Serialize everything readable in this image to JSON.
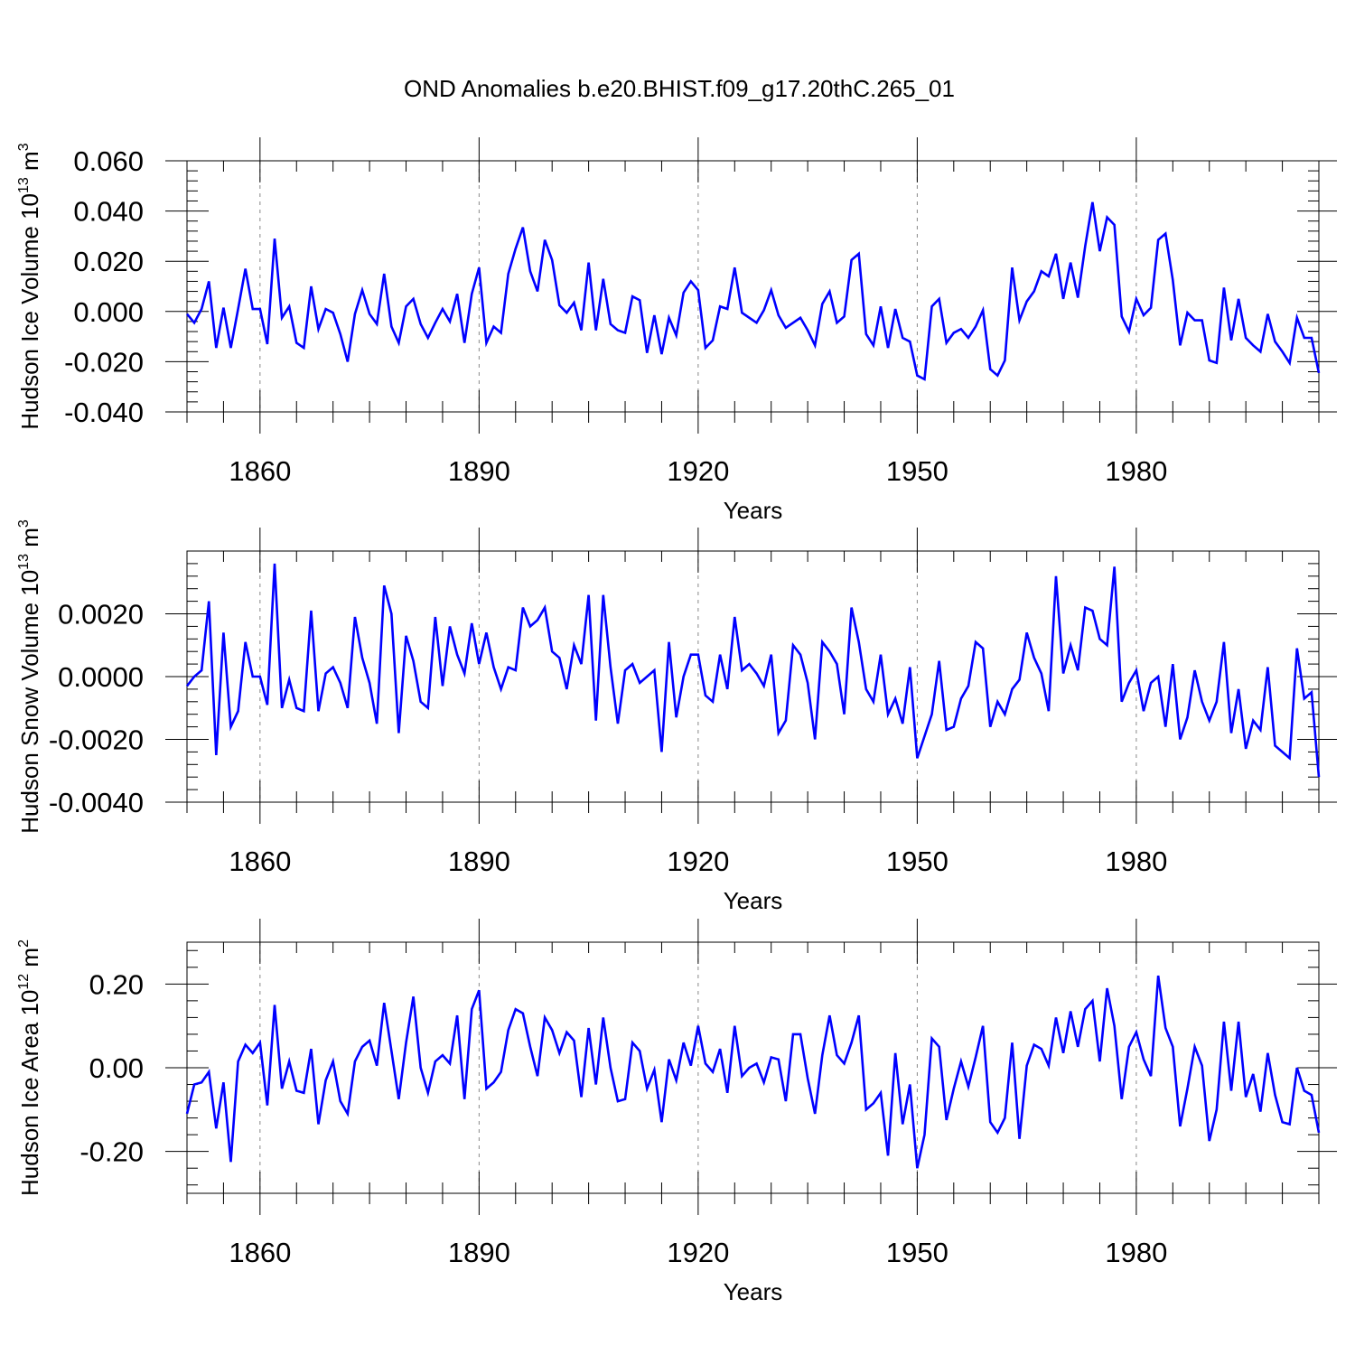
{
  "title": "OND Anomalies b.e20.BHIST.f09_g17.20thC.265_01",
  "colors": {
    "line": "#0000ff",
    "axis": "#000000",
    "grid": "#888888",
    "background": "#ffffff"
  },
  "chart_data": [
    {
      "type": "line",
      "title": "OND Anomalies b.e20.BHIST.f09_g17.20thC.265_01",
      "xlabel": "Years",
      "ylabel_text": "Hudson Ice Volume 10",
      "ylabel_exp": "13",
      "ylabel_unit": " m",
      "ylabel_unit_exp": "3",
      "xlim": [
        1850,
        2005
      ],
      "ylim": [
        -0.04,
        0.06
      ],
      "xticks": [
        1860,
        1890,
        1920,
        1950,
        1980
      ],
      "xtick_labels": [
        "1860",
        "1890",
        "1920",
        "1950",
        "1980"
      ],
      "yticks": [
        -0.04,
        -0.02,
        0.0,
        0.02,
        0.04,
        0.06
      ],
      "ytick_labels": [
        "-0.040",
        "-0.020",
        "0.000",
        "0.020",
        "0.040",
        "0.060"
      ],
      "x_start": 1850,
      "series": [
        {
          "name": "Hudson Ice Volume",
          "values": [
            -0.001,
            -0.0045,
            0.001,
            0.012,
            -0.0145,
            0.0015,
            -0.0145,
            0.001,
            0.017,
            0.001,
            0.001,
            -0.013,
            0.029,
            -0.0025,
            0.002,
            -0.0125,
            -0.0145,
            0.01,
            -0.007,
            0.001,
            -0.0005,
            -0.009,
            -0.02,
            -0.001,
            0.0085,
            -0.001,
            -0.005,
            0.015,
            -0.006,
            -0.0125,
            0.002,
            0.005,
            -0.005,
            -0.0105,
            -0.0045,
            0.001,
            -0.004,
            0.007,
            -0.0125,
            0.007,
            0.0175,
            -0.0125,
            -0.006,
            -0.0085,
            0.015,
            0.025,
            0.0335,
            0.016,
            0.008,
            0.0285,
            0.0205,
            0.0025,
            -0.0005,
            0.0035,
            -0.0075,
            0.0195,
            -0.0075,
            0.013,
            -0.005,
            -0.0075,
            -0.0085,
            0.006,
            0.0045,
            -0.0165,
            -0.0015,
            -0.017,
            -0.0025,
            -0.0095,
            0.0075,
            0.012,
            0.0085,
            -0.0145,
            -0.0115,
            0.002,
            0.001,
            0.0175,
            -0.0005,
            -0.0025,
            -0.0045,
            0.0005,
            0.0085,
            -0.0015,
            -0.0065,
            -0.0045,
            -0.0025,
            -0.0075,
            -0.0135,
            0.003,
            0.008,
            -0.0045,
            -0.002,
            0.0205,
            0.023,
            -0.009,
            -0.0135,
            0.002,
            -0.0145,
            0.001,
            -0.0105,
            -0.012,
            -0.0255,
            -0.027,
            0.002,
            0.005,
            -0.0125,
            -0.0085,
            -0.007,
            -0.0105,
            -0.006,
            0.0005,
            -0.023,
            -0.0255,
            -0.0195,
            0.0175,
            -0.0035,
            0.004,
            0.008,
            0.016,
            0.014,
            0.023,
            0.005,
            0.0195,
            0.0055,
            0.026,
            0.0435,
            0.024,
            0.0375,
            0.0345,
            -0.002,
            -0.008,
            0.005,
            -0.0015,
            0.0015,
            0.0285,
            0.031,
            0.0125,
            -0.0135,
            -0.0005,
            -0.0035,
            -0.0035,
            -0.0195,
            -0.0205,
            0.0095,
            -0.0115,
            0.005,
            -0.0105,
            -0.0135,
            -0.016,
            -0.001,
            -0.012,
            -0.016,
            -0.0205,
            -0.0025,
            -0.0105,
            -0.0105,
            -0.0245
          ]
        }
      ]
    },
    {
      "type": "line",
      "title": "",
      "xlabel": "Years",
      "ylabel_text": "Hudson Snow Volume 10",
      "ylabel_exp": "13",
      "ylabel_unit": " m",
      "ylabel_unit_exp": "3",
      "xlim": [
        1850,
        2005
      ],
      "ylim": [
        -0.004,
        0.004
      ],
      "xticks": [
        1860,
        1890,
        1920,
        1950,
        1980
      ],
      "xtick_labels": [
        "1860",
        "1890",
        "1920",
        "1950",
        "1980"
      ],
      "yticks": [
        -0.004,
        -0.002,
        0.0,
        0.002
      ],
      "ytick_labels": [
        "-0.0040",
        "-0.0020",
        "0.0000",
        "0.0020"
      ],
      "x_start": 1850,
      "series": [
        {
          "name": "Hudson Snow Volume",
          "values": [
            -0.0003,
            0.0,
            0.0002,
            0.0024,
            -0.0025,
            0.0014,
            -0.0016,
            -0.0011,
            0.0011,
            0.0,
            0.0,
            -0.0009,
            0.0036,
            -0.001,
            -0.0001,
            -0.001,
            -0.0011,
            0.0021,
            -0.0011,
            0.0001,
            0.0003,
            -0.0002,
            -0.001,
            0.0019,
            0.0006,
            -0.0002,
            -0.0015,
            0.0029,
            0.002,
            -0.0018,
            0.0013,
            0.0005,
            -0.0008,
            -0.001,
            0.0019,
            -0.0003,
            0.0016,
            0.0007,
            0.0001,
            0.0017,
            0.0004,
            0.0014,
            0.0003,
            -0.0004,
            0.0003,
            0.0002,
            0.0022,
            0.0016,
            0.0018,
            0.0022,
            0.0008,
            0.0006,
            -0.0004,
            0.001,
            0.0004,
            0.0026,
            -0.0014,
            0.0026,
            0.0003,
            -0.0015,
            0.0002,
            0.0004,
            -0.0002,
            0.0,
            0.0002,
            -0.0024,
            0.0011,
            -0.0013,
            0.0,
            0.0007,
            0.0007,
            -0.0006,
            -0.0008,
            0.0007,
            -0.0004,
            0.0019,
            0.0002,
            0.0004,
            0.0001,
            -0.0003,
            0.0007,
            -0.0018,
            -0.0014,
            0.001,
            0.0007,
            -0.0002,
            -0.002,
            0.0011,
            0.0008,
            0.0004,
            -0.0012,
            0.0022,
            0.0011,
            -0.0004,
            -0.0008,
            0.0007,
            -0.0012,
            -0.0007,
            -0.0015,
            0.0003,
            -0.0026,
            -0.0019,
            -0.0012,
            0.0005,
            -0.0017,
            -0.0016,
            -0.0007,
            -0.0003,
            0.0011,
            0.0009,
            -0.0016,
            -0.0008,
            -0.0012,
            -0.0004,
            -0.0001,
            0.0014,
            0.0006,
            0.0001,
            -0.0011,
            0.0032,
            0.0001,
            0.001,
            0.0002,
            0.0022,
            0.0021,
            0.0012,
            0.001,
            0.0035,
            -0.0008,
            -0.0002,
            0.0002,
            -0.0011,
            -0.0002,
            0.0,
            -0.0016,
            0.0004,
            -0.002,
            -0.0013,
            0.0002,
            -0.0008,
            -0.0014,
            -0.0008,
            0.0011,
            -0.0018,
            -0.0004,
            -0.0023,
            -0.0014,
            -0.0017,
            0.0003,
            -0.0022,
            -0.0024,
            -0.0026,
            0.0009,
            -0.0007,
            -0.0005,
            -0.0032
          ]
        }
      ]
    },
    {
      "type": "line",
      "title": "",
      "xlabel": "Years",
      "ylabel_text": "Hudson Ice Area 10",
      "ylabel_exp": "12",
      "ylabel_unit": " m",
      "ylabel_unit_exp": "2",
      "xlim": [
        1850,
        2005
      ],
      "ylim": [
        -0.3,
        0.3
      ],
      "xticks": [
        1860,
        1890,
        1920,
        1950,
        1980
      ],
      "xtick_labels": [
        "1860",
        "1890",
        "1920",
        "1950",
        "1980"
      ],
      "yticks": [
        -0.2,
        0.0,
        0.2
      ],
      "ytick_labels": [
        "-0.20",
        "0.00",
        "0.20"
      ],
      "x_start": 1850,
      "series": [
        {
          "name": "Hudson Ice Area",
          "values": [
            -0.11,
            -0.04,
            -0.035,
            -0.01,
            -0.145,
            -0.035,
            -0.225,
            0.015,
            0.055,
            0.035,
            0.06,
            -0.09,
            0.15,
            -0.05,
            0.015,
            -0.055,
            -0.06,
            0.045,
            -0.135,
            -0.03,
            0.015,
            -0.08,
            -0.11,
            0.015,
            0.05,
            0.065,
            0.005,
            0.155,
            0.04,
            -0.075,
            0.06,
            0.17,
            0.0,
            -0.06,
            0.015,
            0.03,
            0.01,
            0.125,
            -0.075,
            0.14,
            0.185,
            -0.05,
            -0.035,
            -0.01,
            0.09,
            0.14,
            0.13,
            0.05,
            -0.02,
            0.12,
            0.09,
            0.035,
            0.085,
            0.065,
            -0.07,
            0.095,
            -0.04,
            0.12,
            0.0,
            -0.08,
            -0.075,
            0.06,
            0.04,
            -0.05,
            -0.005,
            -0.13,
            0.02,
            -0.03,
            0.06,
            0.005,
            0.1,
            0.01,
            -0.01,
            0.045,
            -0.06,
            0.1,
            -0.02,
            0.0,
            0.01,
            -0.035,
            0.025,
            0.02,
            -0.08,
            0.08,
            0.08,
            -0.025,
            -0.11,
            0.03,
            0.125,
            0.03,
            0.01,
            0.06,
            0.125,
            -0.1,
            -0.085,
            -0.06,
            -0.21,
            0.035,
            -0.135,
            -0.04,
            -0.24,
            -0.16,
            0.07,
            0.05,
            -0.125,
            -0.05,
            0.015,
            -0.045,
            0.025,
            0.1,
            -0.13,
            -0.155,
            -0.12,
            0.06,
            -0.17,
            0.005,
            0.055,
            0.045,
            0.005,
            0.12,
            0.035,
            0.135,
            0.05,
            0.14,
            0.16,
            0.015,
            0.19,
            0.1,
            -0.075,
            0.05,
            0.085,
            0.02,
            -0.02,
            0.22,
            0.095,
            0.05,
            -0.14,
            -0.05,
            0.05,
            0.005,
            -0.175,
            -0.1,
            0.11,
            -0.055,
            0.11,
            -0.07,
            -0.015,
            -0.105,
            0.035,
            -0.065,
            -0.13,
            -0.135,
            0.0,
            -0.055,
            -0.065,
            -0.155
          ]
        }
      ]
    }
  ]
}
